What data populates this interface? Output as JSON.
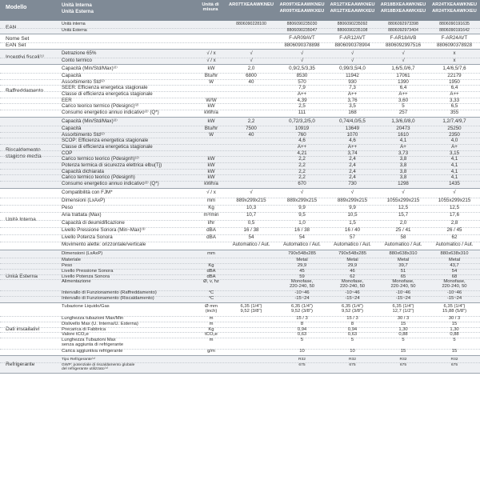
{
  "header": {
    "model_label": "Modello",
    "unit_label": "Unità di misura",
    "units_label": [
      "Unità Interna",
      "Unità Esterna"
    ],
    "models": [
      [
        "AR07TXEAAWKNEU",
        ""
      ],
      [
        "AR09TXEAAWKNEU",
        "AR09TXEAAWKXEU"
      ],
      [
        "AR12TXEAAWKNEU",
        "AR12TXEAAWKXEU"
      ],
      [
        "AR18BXEAAWKNEU",
        "AR18BXEAAWKXEU"
      ],
      [
        "AR24TXEAAWKNEU",
        "AR24TXEAAWKXEU"
      ]
    ]
  },
  "sections": [
    {
      "title": "EAN",
      "shade": true,
      "rows": [
        {
          "label": "Unità interna",
          "unit": "",
          "values": [
            "8806090228100",
            "8806090235030",
            "8806090235092",
            "8806092973398",
            "8806090191635"
          ]
        },
        {
          "label": "Unità Esterna",
          "unit": "",
          "values": [
            "",
            "8806090235047",
            "8806090235108",
            "8806092973404",
            "8806090191642"
          ]
        }
      ]
    },
    {
      "title": "Nome Set\nEAN Set",
      "shade": false,
      "rows": [
        {
          "label": "",
          "unit": "",
          "values": [
            "",
            "F-AR09AVT",
            "F-AR12AVT",
            "F-AR18AVB",
            "F-AR24AVT"
          ]
        },
        {
          "label": "",
          "unit": "",
          "values": [
            "",
            "8806090378898",
            "8806090378904",
            "8806092997516",
            "8806090378928"
          ]
        }
      ]
    },
    {
      "title": "Incentivi fiscali⁽¹⁾",
      "shade": true,
      "rows": [
        {
          "label": "Detrazione 65%",
          "unit": "√ / x",
          "values": [
            "√",
            "√",
            "√",
            "√",
            "x"
          ]
        },
        {
          "label": "Conto termico",
          "unit": "√ / x",
          "values": [
            "√",
            "√",
            "√",
            "√",
            "x"
          ]
        }
      ]
    },
    {
      "title": "Raffreddamento",
      "shade": false,
      "rows": [
        {
          "label": "Capacità (Min/Std/Max)⁽²⁾",
          "unit": "kW",
          "values": [
            "2,0",
            "0,9/2,5/3,35",
            "0,99/3,5/4,0",
            "1,6/5,0/6,7",
            "1,4/6,5/7,6"
          ]
        },
        {
          "label": "Capacità",
          "unit": "Btu/hr",
          "values": [
            "6800",
            "8530",
            "11942",
            "17061",
            "22179"
          ]
        },
        {
          "label": "Assorbimento Std⁽²⁾",
          "unit": "W",
          "values": [
            "40",
            "570",
            "930",
            "1390",
            "1950"
          ]
        },
        {
          "label": "SEER: Efficienza energetica stagionale",
          "unit": "",
          "values": [
            "",
            "7,9",
            "7,3",
            "6,4",
            "6,4"
          ]
        },
        {
          "label": "Classe di efficienza energetica stagionale",
          "unit": "",
          "values": [
            "",
            "A++",
            "A++",
            "A++",
            "A++"
          ]
        },
        {
          "label": "EER",
          "unit": "W/W",
          "values": [
            "",
            "4,39",
            "3,76",
            "3,60",
            "3,33"
          ]
        },
        {
          "label": "Carico teorico termico (Pdesignc)⁽²⁾",
          "unit": "kW",
          "values": [
            "",
            "2,5",
            "3,5",
            "5",
            "6,5"
          ]
        },
        {
          "label": "Consumo energetico annuo indicativo⁽²⁾ (Q*)",
          "unit": "kWh/a",
          "values": [
            "",
            "111",
            "168",
            "257",
            "355"
          ]
        }
      ]
    },
    {
      "title": "Riscaldamento\nstagione media",
      "shade": true,
      "rows": [
        {
          "label": "Capacità (Min/Std/Max)⁽²⁾",
          "unit": "kW",
          "values": [
            "2,2",
            "0,72/3,2/5,0",
            "0,74/4,0/5,5",
            "1,3/6,0/8,0",
            "1,2/7,4/9,7"
          ]
        },
        {
          "label": "Capacità",
          "unit": "Btu/hr",
          "values": [
            "7500",
            "10919",
            "13649",
            "20473",
            "25250"
          ]
        },
        {
          "label": "Assorbimento Std⁽²⁾",
          "unit": "W",
          "values": [
            "40",
            "760",
            "1070",
            "1610",
            "2350"
          ]
        },
        {
          "label": "SCOP: Efficienza energetica stagionale",
          "unit": "",
          "values": [
            "",
            "4,6",
            "4,6",
            "4,1",
            "4,0"
          ]
        },
        {
          "label": "Classe di efficienza energetica stagionale",
          "unit": "",
          "values": [
            "",
            "A++",
            "A++",
            "A+",
            "A+"
          ]
        },
        {
          "label": "COP",
          "unit": "",
          "values": [
            "",
            "4,21",
            "3,74",
            "3,73",
            "3,15"
          ]
        },
        {
          "label": "Carico termico teorico (Pdesignh)⁽²⁾",
          "unit": "kW",
          "values": [
            "",
            "2,2",
            "2,4",
            "3,8",
            "4,1"
          ]
        },
        {
          "label": "Potenza termica di sicurezza elettrica elbu(Tj)",
          "unit": "kW",
          "values": [
            "",
            "2,2",
            "2,4",
            "3,8",
            "4,1"
          ]
        },
        {
          "label": "Capacità dichiarata",
          "unit": "kW",
          "values": [
            "",
            "2,2",
            "2,4",
            "3,8",
            "4,1"
          ]
        },
        {
          "label": "Carico termico teorico (Pdesignh)",
          "unit": "kW",
          "values": [
            "",
            "2,2",
            "2,4",
            "3,8",
            "4,1"
          ]
        },
        {
          "label": "Consumo energetico annuo indicativo⁽²⁾ (Q*)",
          "unit": "kWh/a",
          "values": [
            "",
            "670",
            "730",
            "1298",
            "1435"
          ]
        }
      ]
    },
    {
      "title": "Unità Interna",
      "shade": false,
      "rows": [
        {
          "label": "Compatibilità con FJM*",
          "unit": "√ / x",
          "values": [
            "√",
            "√",
            "√",
            "√",
            "√"
          ]
        },
        {
          "label": "Dimensioni (LxAxP)",
          "unit": "mm",
          "values": [
            "889x299x215",
            "889x299x215",
            "889x299x215",
            "1055x299x215",
            "1055x299x215"
          ]
        },
        {
          "label": "Peso",
          "unit": "Kg",
          "values": [
            "10,3",
            "9,9",
            "9,9",
            "12,5",
            "12,5"
          ]
        },
        {
          "label": "Aria trattata (Max)",
          "unit": "m³/min",
          "values": [
            "10,7",
            "9,5",
            "10,5",
            "15,7",
            "17,6"
          ]
        },
        {
          "label": "Capacità di deumidificazione",
          "unit": "l/hr",
          "values": [
            "0,5",
            "1,0",
            "1,5",
            "2,0",
            "2,8"
          ]
        },
        {
          "label": "Livello Pressione Sonora (Min~Max)⁽³⁾",
          "unit": "dBA",
          "values": [
            "16 / 38",
            "16 / 38",
            "16 / 40",
            "25 / 41",
            "26 / 45"
          ]
        },
        {
          "label": "Livello Potenza Sonora",
          "unit": "dBA",
          "values": [
            "54",
            "54",
            "57",
            "58",
            "62"
          ]
        },
        {
          "label": "Movimento alette: orizzontale/verticale",
          "unit": "",
          "values": [
            "Automatico / Aut.",
            "Automatico / Aut.",
            "Automatico / Aut.",
            "Automatico / Aut.",
            "Automatico / Aut."
          ]
        }
      ]
    },
    {
      "title": "Unità Esterna",
      "shade": true,
      "rows": [
        {
          "label": "Dimensioni (LxAxP)",
          "unit": "mm",
          "values": [
            "",
            "790x548x285",
            "790x548x285",
            "880x638x310",
            "880x638x310"
          ]
        },
        {
          "label": "Materiale",
          "unit": "",
          "values": [
            "",
            "Metal",
            "Metal",
            "Metal",
            "Metal"
          ]
        },
        {
          "label": "Peso",
          "unit": "Kg",
          "values": [
            "",
            "29,9",
            "29,9",
            "39,7",
            "43,7"
          ]
        },
        {
          "label": "Livello Pressione Sonora",
          "unit": "dBA",
          "values": [
            "",
            "45",
            "46",
            "51",
            "54"
          ]
        },
        {
          "label": "Livello Potenza Sonora",
          "unit": "dBA",
          "values": [
            "",
            "59",
            "62",
            "65",
            "68"
          ]
        },
        {
          "label": "Alimentazione",
          "unit": "Ø, v, hz",
          "values": [
            "",
            "Monofase,\n220-240, 50",
            "Monofase,\n220-240, 50",
            "Monofase,\n220-240, 50",
            "Monofase,\n220-240, 50"
          ]
        },
        {
          "label": "Intervallo di Funzionamento (Raffreddamento)",
          "unit": "°C",
          "values": [
            "",
            "-10~46",
            "-10~46",
            "-10~46",
            "-10~46"
          ]
        },
        {
          "label": "Intervallo di Funzionamento (Riscaldamento)",
          "unit": "°C",
          "values": [
            "",
            "-15~24",
            "-15~24",
            "-15~24",
            "-15~24"
          ]
        }
      ]
    },
    {
      "title": "Dati installativi",
      "shade": false,
      "rows": [
        {
          "label": "Tubazione Liquido/Gas",
          "unit": "Ø mm\n(inch)",
          "values": [
            "6,35 (1/4\")\n9,52 (3/8\")",
            "6,35 (1/4\")\n9,52 (3/8\")",
            "6,35 (1/4\")\n9,52 (3/8\")",
            "6,35 (1/4\")\n12,7 (1/2\")",
            "6,35 (1/4\")\n15,88 (5/8\")"
          ]
        },
        {
          "label": "Lunghezza tubazioni Max/Min",
          "unit": "m",
          "values": [
            "",
            "15 / 3",
            "15 / 3",
            "30 / 3",
            "30 / 3"
          ]
        },
        {
          "label": "Dislivello Max (U. Interna/U. Esterna)",
          "unit": "m",
          "values": [
            "",
            "8",
            "8",
            "15",
            "15"
          ]
        },
        {
          "label": "Precarica di Fabbrica",
          "unit": "Kg",
          "values": [
            "",
            "0,94",
            "0,94",
            "1,30",
            "1,30"
          ]
        },
        {
          "label": "Valore tCO₂e",
          "unit": "tCO₂e",
          "values": [
            "",
            "0,63",
            "0,63",
            "0,88",
            "0,88"
          ]
        },
        {
          "label": "Lunghezza Tubazioni Max\nsenza aggiunta di refrigerante",
          "unit": "m",
          "values": [
            "",
            "5",
            "5",
            "5",
            "5"
          ]
        },
        {
          "label": "Carica aggiuntiva refrigerante",
          "unit": "g/m",
          "values": [
            "",
            "10",
            "10",
            "15",
            "15"
          ]
        }
      ]
    },
    {
      "title": "Refrigerante",
      "shade": true,
      "rows": [
        {
          "label": "Tipo Refrigerante⁽⁴⁾",
          "unit": "",
          "values": [
            "",
            "R32",
            "R32",
            "R32",
            "R32"
          ]
        },
        {
          "label": "GWP: potenziale di riscaldamento globale\ndel refrigerante utilizzato⁽⁴⁾",
          "unit": "",
          "values": [
            "",
            "675",
            "675",
            "675",
            "675"
          ]
        }
      ]
    }
  ]
}
